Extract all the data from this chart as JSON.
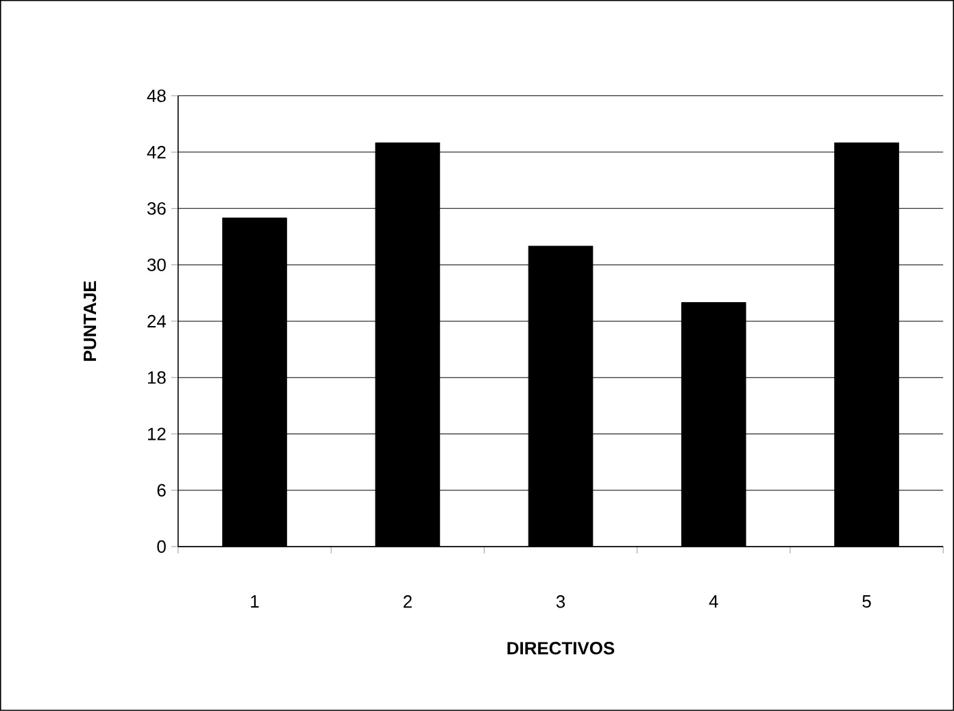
{
  "chart_data": {
    "type": "bar",
    "xlabel": "DIRECTIVOS",
    "ylabel": "PUNTAJE",
    "categories": [
      "1",
      "2",
      "3",
      "4",
      "5"
    ],
    "values": [
      35,
      43,
      32,
      26,
      43
    ],
    "color": "#000000",
    "ylim": [
      0,
      48
    ],
    "yticks": [
      0,
      6,
      12,
      18,
      24,
      30,
      36,
      42,
      48
    ],
    "grid": "y"
  }
}
